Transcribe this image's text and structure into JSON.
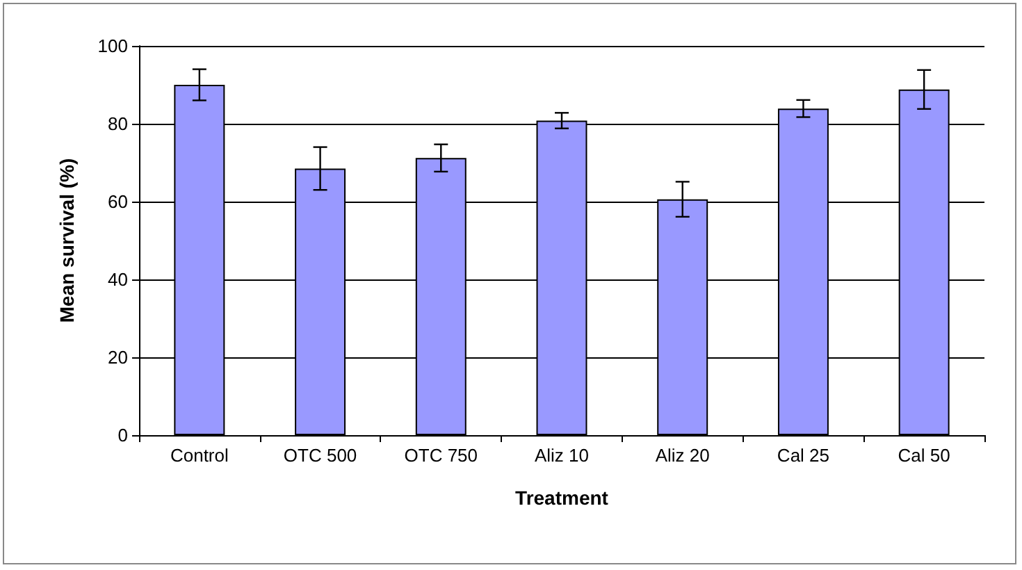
{
  "chart_data": {
    "type": "bar",
    "xlabel": "Treatment",
    "ylabel": "Mean survival (%)",
    "categories": [
      "Control",
      "OTC 500",
      "OTC 750",
      "Aliz 10",
      "Aliz 20",
      "Cal 25",
      "Cal 50"
    ],
    "values": [
      90,
      68.5,
      71.2,
      80.8,
      60.6,
      83.9,
      88.8
    ],
    "errors": [
      4,
      5.5,
      3.5,
      2,
      4.5,
      2.2,
      5
    ],
    "color": "#9999ff",
    "ylim": [
      0,
      100
    ],
    "yticks": [
      0,
      20,
      40,
      60,
      80,
      100
    ],
    "grid": "y"
  }
}
